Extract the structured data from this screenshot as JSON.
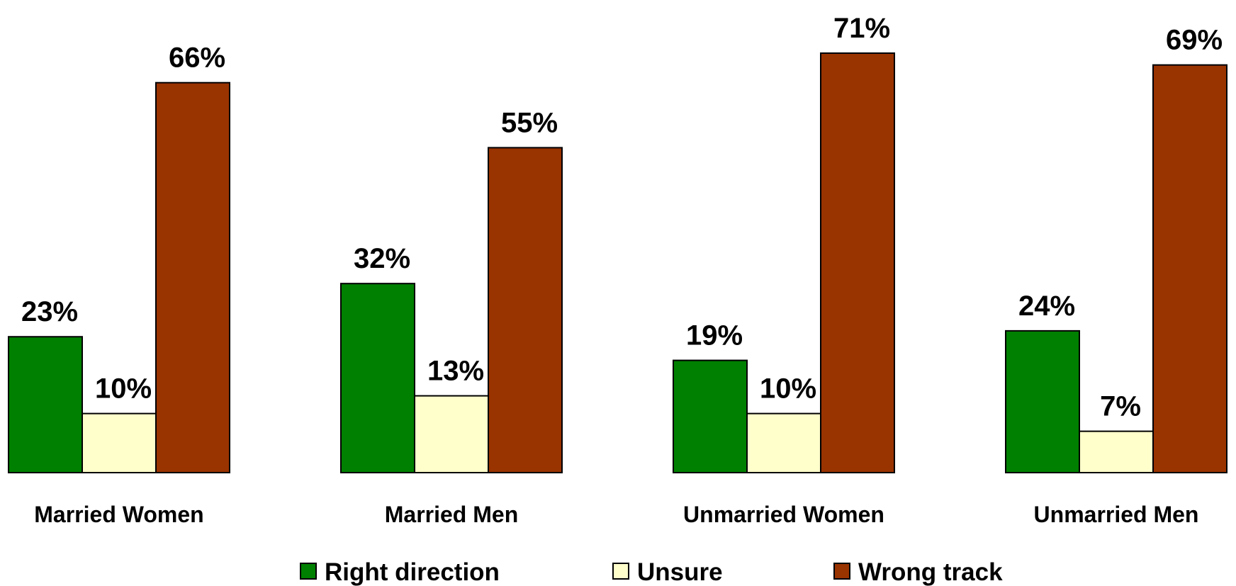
{
  "chart_data": {
    "type": "bar",
    "categories": [
      "Married Women",
      "Married Men",
      "Unmarried Women",
      "Unmarried Men"
    ],
    "series": [
      {
        "name": "Right direction",
        "color": "#008000",
        "values": [
          23,
          32,
          19,
          24
        ],
        "value_labels": [
          "23%",
          "32%",
          "19%",
          "24%"
        ]
      },
      {
        "name": "Unsure",
        "color": "#ffffcc",
        "values": [
          10,
          13,
          10,
          7
        ],
        "value_labels": [
          "10%",
          "13%",
          "10%",
          "7%"
        ]
      },
      {
        "name": "Wrong track",
        "color": "#993300",
        "values": [
          66,
          55,
          71,
          69
        ],
        "value_labels": [
          "66%",
          "55%",
          "71%",
          "69%"
        ]
      }
    ],
    "legend": "bottom"
  }
}
